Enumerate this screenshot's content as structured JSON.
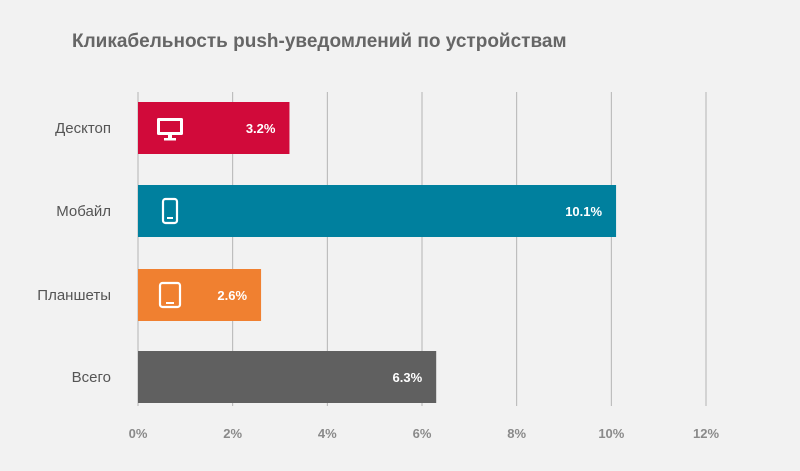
{
  "chart_data": {
    "type": "bar",
    "orientation": "horizontal",
    "title": "Кликабельность push-уведомлений по устройствам",
    "xlabel": "",
    "ylabel": "",
    "categories": [
      "Десктоп",
      "Мобайл",
      "Планшеты",
      "Всего"
    ],
    "values": [
      3.2,
      10.1,
      2.6,
      6.3
    ],
    "value_labels": [
      "3.2%",
      "10.1%",
      "2.6%",
      "6.3%"
    ],
    "colors": [
      "#d10a3a",
      "#00809e",
      "#f08030",
      "#606060"
    ],
    "icons": [
      "desktop-icon",
      "smartphone-icon",
      "tablet-icon",
      ""
    ],
    "xlim": [
      0,
      12
    ],
    "x_ticks": [
      0,
      2,
      4,
      6,
      8,
      10,
      12
    ],
    "x_tick_labels": [
      "0%",
      "2%",
      "4%",
      "6%",
      "8%",
      "10%",
      "12%"
    ],
    "grid": "vertical",
    "legend": "none"
  }
}
